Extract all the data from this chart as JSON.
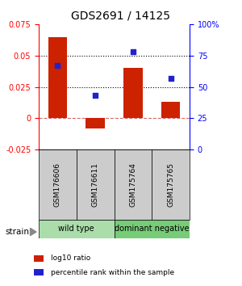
{
  "title": "GDS2691 / 14125",
  "samples": [
    "GSM176606",
    "GSM176611",
    "GSM175764",
    "GSM175765"
  ],
  "log10_ratio": [
    0.065,
    -0.008,
    0.04,
    0.013
  ],
  "percentile_rank_pct": [
    67,
    43,
    78,
    57
  ],
  "ylim_left": [
    -0.025,
    0.075
  ],
  "yticks_left": [
    -0.025,
    0,
    0.025,
    0.05,
    0.075
  ],
  "ylim_right": [
    0,
    100
  ],
  "yticks_right": [
    0,
    25,
    50,
    75,
    100
  ],
  "ytick_labels_right": [
    "0",
    "25",
    "50",
    "75",
    "100%"
  ],
  "hlines_dotted": [
    0.025,
    0.05
  ],
  "hline_dashed": 0,
  "bar_color": "#cc2200",
  "dot_color": "#2222cc",
  "group_labels": [
    "wild type",
    "dominant negative"
  ],
  "group_colors": [
    "#aaddaa",
    "#77cc77"
  ],
  "strain_label": "strain",
  "legend_red": "log10 ratio",
  "legend_blue": "percentile rank within the sample",
  "bg_color": "#ffffff",
  "sample_box_color": "#cccccc",
  "title_fontsize": 10,
  "tick_fontsize": 7,
  "label_fontsize": 7
}
